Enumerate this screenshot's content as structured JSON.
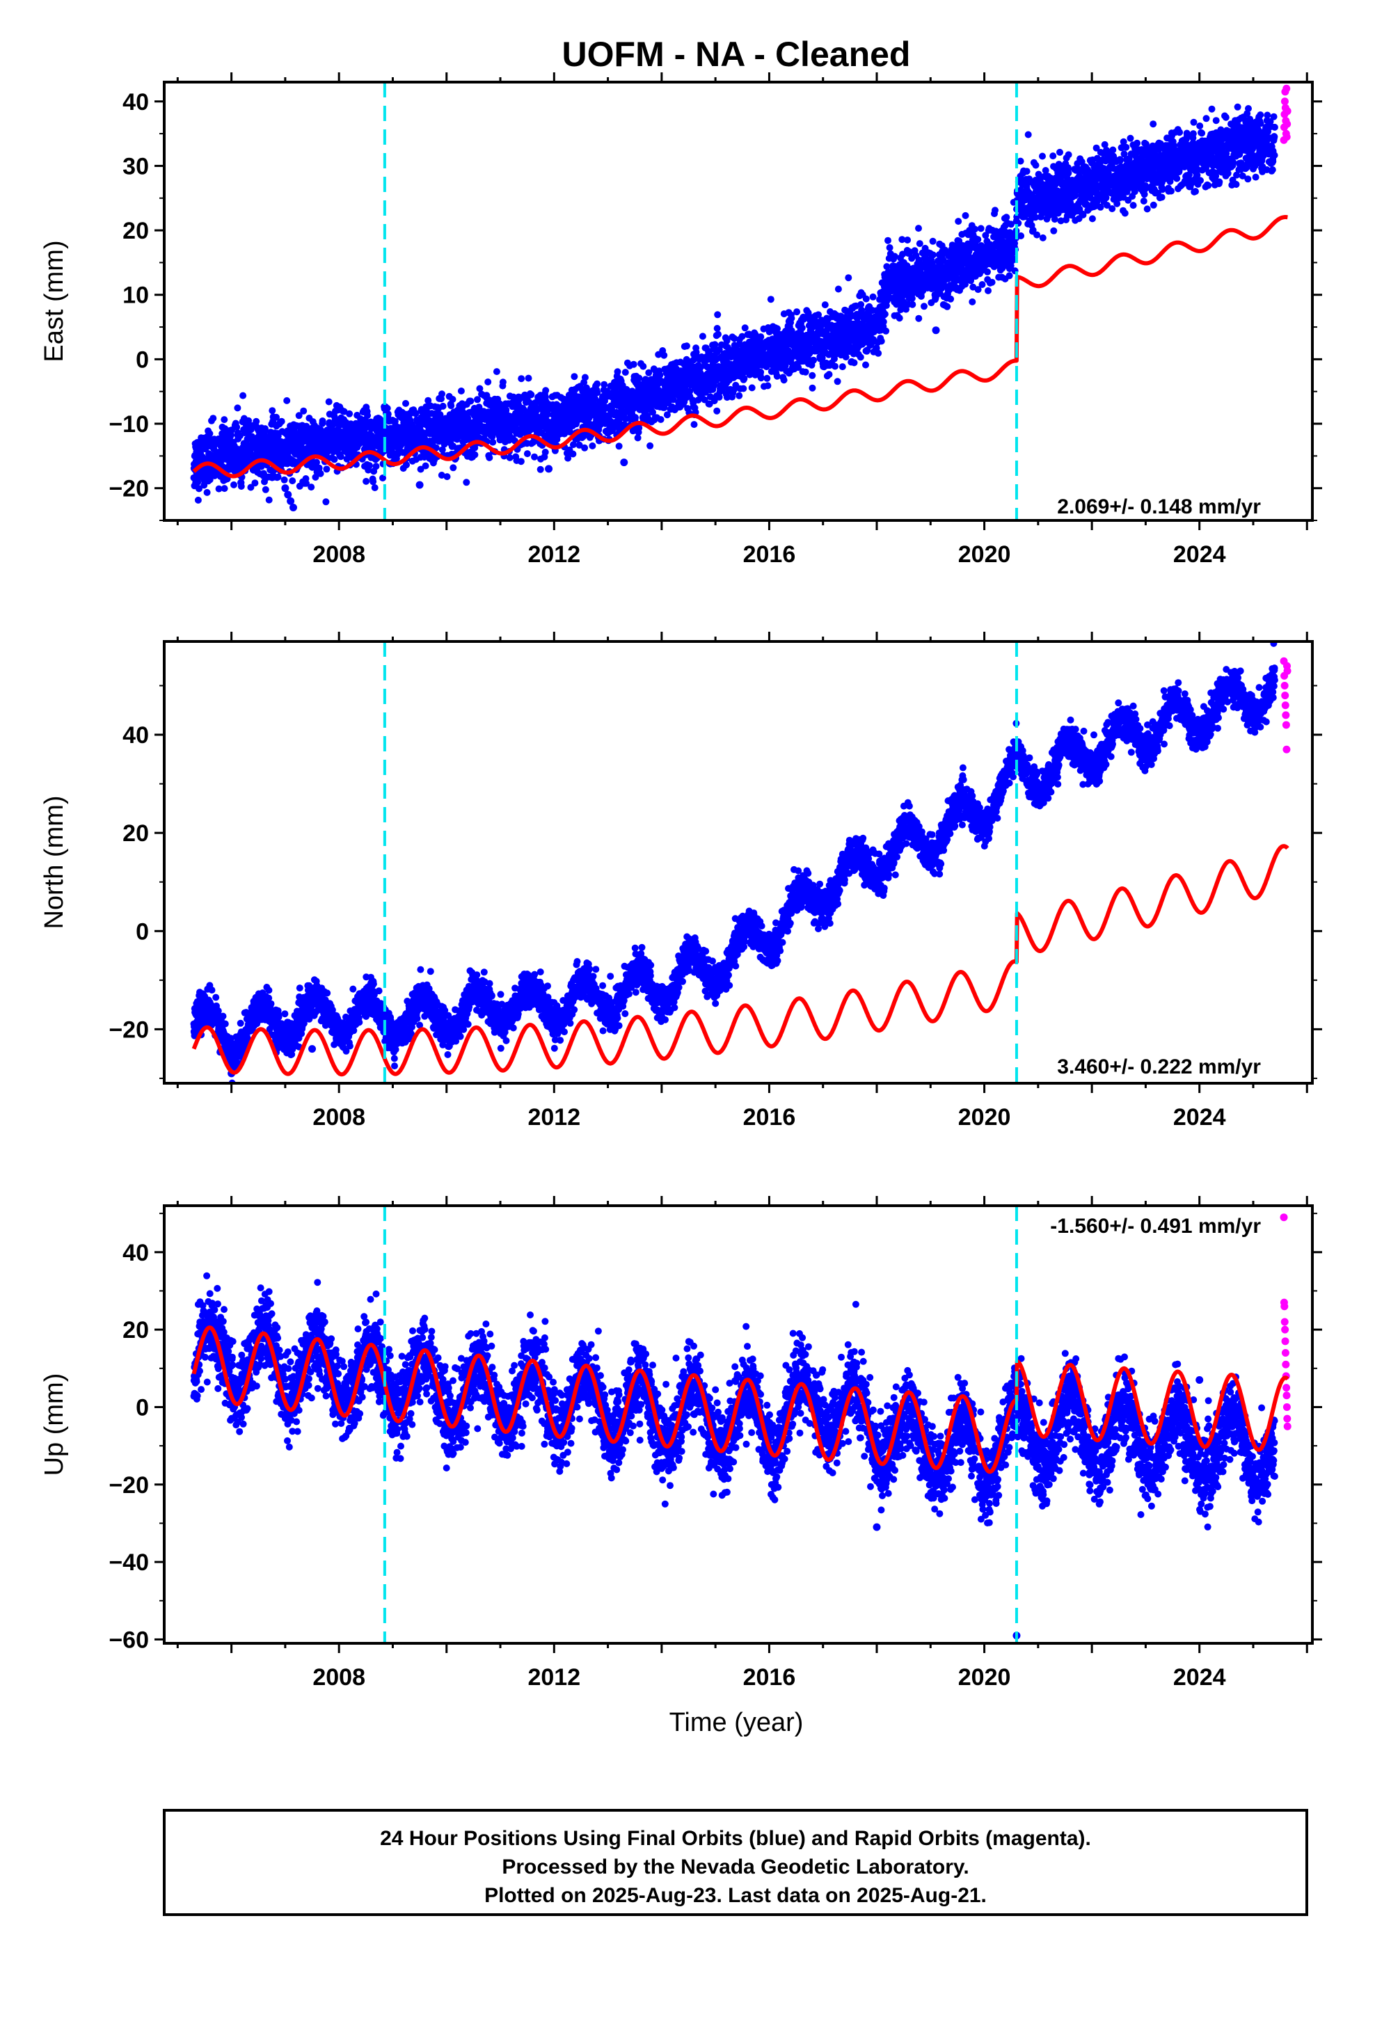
{
  "title": "UOFM  - NA - Cleaned",
  "colors": {
    "final": "#0000ff",
    "rapid": "#ff00ff",
    "model": "#ff0000",
    "offset": "#00e5ee"
  },
  "xlabel": "Time (year)",
  "footer": [
    "24 Hour Positions Using Final Orbits (blue) and Rapid Orbits (magenta).",
    "Processed by the Nevada Geodetic Laboratory.",
    "Plotted on 2025-Aug-23. Last data on 2025-Aug-21."
  ],
  "chart_data": [
    {
      "type": "scatter",
      "component": "east",
      "ylabel": "East (mm)",
      "rate_text": "2.069+/- 0.148 mm/yr",
      "xlim": [
        2004.75,
        2026.1
      ],
      "ylim": [
        -25,
        43
      ],
      "xticks": [
        2008,
        2012,
        2016,
        2020,
        2024
      ],
      "yticks": [
        -20,
        -10,
        0,
        10,
        20,
        30,
        40
      ],
      "offsets": [
        2008.85,
        2020.6
      ],
      "data_range": [
        2005.3,
        2025.64
      ],
      "rapid_range": [
        2025.4,
        2025.64
      ],
      "final_series_knots": {
        "x": [
          2005.3,
          2006.0,
          2007.0,
          2008.0,
          2009.0,
          2010.0,
          2011.0,
          2012.0,
          2013.0,
          2014.0,
          2015.0,
          2016.0,
          2017.0,
          2018.0,
          2018.2,
          2019.0,
          2020.0,
          2020.59,
          2020.61,
          2021.0,
          2022.0,
          2023.0,
          2024.0,
          2025.0,
          2025.4
        ],
        "y": [
          -16,
          -14.5,
          -14,
          -12.5,
          -12,
          -11,
          -9.5,
          -10,
          -8,
          -5,
          -2,
          1,
          3,
          5,
          12,
          13,
          16,
          18,
          25,
          25,
          27,
          29.5,
          31.5,
          33,
          34
        ]
      },
      "final_scatter_mm": 2.3,
      "rapid_y": [
        34,
        36,
        38,
        40,
        41.5,
        39,
        37,
        35,
        42,
        34.5,
        36.5,
        38.5
      ],
      "model": {
        "ref_year": 2005.3,
        "y0": -17.4,
        "rate": 0.45,
        "accel": 0.0395,
        "season_amp": 1.1,
        "season_phase": 0.3,
        "post_seismic_offset": 13,
        "step_year": 2020.6
      },
      "outliers": [
        [
          2007.0,
          -20
        ],
        [
          2007.05,
          -21
        ],
        [
          2007.1,
          -22
        ],
        [
          2007.15,
          -23
        ],
        [
          2009.5,
          -19.5
        ],
        [
          2011.9,
          -17
        ],
        [
          2013.3,
          -16
        ],
        [
          2019.1,
          4.5
        ]
      ]
    },
    {
      "type": "scatter",
      "component": "north",
      "ylabel": "North (mm)",
      "rate_text": "3.460+/- 0.222 mm/yr",
      "xlim": [
        2004.75,
        2026.1
      ],
      "ylim": [
        -31,
        59
      ],
      "xticks": [
        2008,
        2012,
        2016,
        2020,
        2024
      ],
      "yticks": [
        -20,
        0,
        20,
        40
      ],
      "offsets": [
        2008.85,
        2020.6
      ],
      "data_range": [
        2005.3,
        2025.64
      ],
      "rapid_range": [
        2025.4,
        2025.64
      ],
      "final_series_knots": {
        "x": [
          2005.3,
          2006.0,
          2007.0,
          2008.0,
          2009.0,
          2010.0,
          2011.0,
          2012.0,
          2013.0,
          2014.0,
          2015.0,
          2016.0,
          2017.0,
          2018.0,
          2019.0,
          2020.0,
          2020.59,
          2020.61,
          2021.0,
          2022.0,
          2023.0,
          2024.0,
          2025.0,
          2025.4
        ],
        "y": [
          -19,
          -21,
          -18,
          -17,
          -18,
          -17,
          -15,
          -15,
          -13,
          -11,
          -7,
          0,
          8,
          15,
          19,
          25,
          32,
          32,
          32,
          37,
          41,
          44,
          48,
          49
        ]
      },
      "final_season_amp": 4,
      "final_scatter_mm": 1.8,
      "rapid_y": [
        55,
        52,
        50,
        48,
        46,
        44,
        42,
        37,
        54,
        53
      ],
      "model": {
        "ref_year": 2005.3,
        "y0": -24,
        "rate": -0.5,
        "accel": 0.09,
        "season_amp": 4.5,
        "season_phase": 0.3,
        "post_seismic_offset": 10,
        "step_year": 2020.6
      },
      "outliers": [
        [
          2006.0,
          -29
        ],
        [
          2006.1,
          -28
        ],
        [
          2007.5,
          -24
        ]
      ]
    },
    {
      "type": "scatter",
      "component": "up",
      "ylabel": "Up (mm)",
      "rate_text": "-1.560+/- 0.491 mm/yr",
      "xlim": [
        2004.75,
        2026.1
      ],
      "ylim": [
        -61,
        52
      ],
      "xticks": [
        2008,
        2012,
        2016,
        2020,
        2024
      ],
      "yticks": [
        -60,
        -40,
        -20,
        0,
        20,
        40
      ],
      "offsets": [
        2008.85,
        2020.6
      ],
      "data_range": [
        2005.3,
        2025.64
      ],
      "rapid_range": [
        2025.4,
        2025.64
      ],
      "final_series_knots": {
        "x": [
          2005.3,
          2006.0,
          2008.0,
          2010.0,
          2012.0,
          2014.0,
          2016.0,
          2017.0,
          2018.0,
          2019.0,
          2020.0,
          2020.6,
          2021.0,
          2022.0,
          2023.0,
          2024.0,
          2025.0,
          2025.4
        ],
        "y": [
          13,
          12,
          9,
          4,
          2,
          -2,
          -4,
          2,
          -6,
          -10,
          -12,
          -6,
          -7,
          -7,
          -8,
          -10,
          -11,
          -10
        ]
      },
      "final_season_amp": 8,
      "final_scatter_mm": 5,
      "rapid_y": [
        49,
        27,
        26,
        22,
        20,
        17,
        14,
        11,
        8,
        5,
        3,
        0,
        -3,
        -5
      ],
      "model": {
        "ref_year": 2005.3,
        "y0": 11.5,
        "rate": -1.56,
        "accel": 0.02,
        "season_amp": 9.5,
        "season_phase": 0.35,
        "post_seismic_offset": 10,
        "step_year": 2020.6
      },
      "outliers": [
        [
          2018.0,
          -31
        ],
        [
          2020.6,
          -59
        ],
        [
          2020.65,
          8
        ],
        [
          2024.0,
          7
        ]
      ]
    }
  ]
}
